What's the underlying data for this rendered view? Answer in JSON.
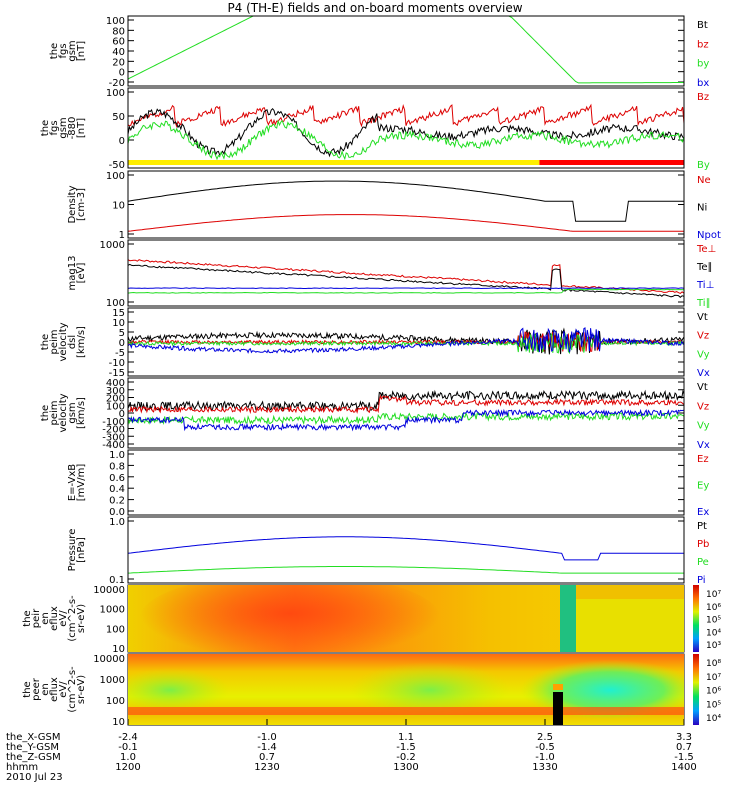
{
  "title": "P4 (TH-E) fields and on-board moments overview",
  "colors": {
    "black": "#000000",
    "red": "#dd0000",
    "green": "#22dd22",
    "blue": "#0000dd",
    "yellow": "#ffee00",
    "barred": "#ff0000"
  },
  "chart_data": [
    {
      "type": "line",
      "panel": "fgs_gsm_1",
      "ylabel": [
        "the",
        "fgs",
        "gsm",
        "[nT]"
      ],
      "yticks": [
        "100",
        "80",
        "60",
        "40",
        "20",
        "0",
        "-20"
      ],
      "ylim": [
        -20,
        100
      ],
      "legend": [
        {
          "label": "Bt",
          "color": "black"
        },
        {
          "label": "bz",
          "color": "red"
        },
        {
          "label": "by",
          "color": "green"
        },
        {
          "label": "bx",
          "color": "blue"
        }
      ]
    },
    {
      "type": "line",
      "panel": "fgs_gsm_2",
      "ylabel": [
        "the",
        "fgs",
        "gsm",
        "-880",
        "[nT]"
      ],
      "yticks": [
        "100",
        "50",
        "0",
        "-50"
      ],
      "ylim": [
        -70,
        100
      ],
      "legend": [
        {
          "label": "Bz",
          "color": "red"
        },
        {
          "label": "By",
          "color": "green"
        }
      ]
    },
    {
      "type": "line",
      "panel": "density",
      "ylabel": [
        "Density",
        "[cm-3]"
      ],
      "yticks": [
        "100",
        "10",
        "1"
      ],
      "ylim": [
        0.4,
        200
      ],
      "scale": "log",
      "legend": [
        {
          "label": "Ne",
          "color": "red"
        },
        {
          "label": "Ni",
          "color": "black"
        },
        {
          "label": "Npot",
          "color": "blue"
        }
      ]
    },
    {
      "type": "line",
      "panel": "temperature",
      "ylabel": [
        "mag13",
        "[eV]"
      ],
      "yticks": [
        "1000",
        "100"
      ],
      "ylim": [
        80,
        5000
      ],
      "scale": "log",
      "legend": [
        {
          "label": "Te⊥",
          "color": "red"
        },
        {
          "label": "Te∥",
          "color": "black"
        },
        {
          "label": "Ti⊥",
          "color": "blue"
        },
        {
          "label": "Ti∥",
          "color": "green"
        }
      ]
    },
    {
      "type": "line",
      "panel": "peim_velocity_dsl",
      "ylabel": [
        "the",
        "peim",
        "velocity",
        "dsl",
        "[km/s]"
      ],
      "yticks": [
        "15",
        "10",
        "5",
        "0",
        "-5",
        "-10",
        "-15"
      ],
      "ylim": [
        -15,
        15
      ],
      "legend": [
        {
          "label": "Vt",
          "color": "black"
        },
        {
          "label": "Vz",
          "color": "red"
        },
        {
          "label": "Vy",
          "color": "green"
        },
        {
          "label": "Vx",
          "color": "blue"
        }
      ]
    },
    {
      "type": "line",
      "panel": "peim_velocity_gsm",
      "ylabel": [
        "the",
        "peim",
        "velocity",
        "gsm",
        "[km/s]"
      ],
      "yticks": [
        "400",
        "300",
        "200",
        "100",
        "0",
        "-100",
        "-200",
        "-300",
        "-400"
      ],
      "ylim": [
        -400,
        400
      ],
      "legend": [
        {
          "label": "Vt",
          "color": "black"
        },
        {
          "label": "Vz",
          "color": "red"
        },
        {
          "label": "Vy",
          "color": "green"
        },
        {
          "label": "Vx",
          "color": "blue"
        }
      ]
    },
    {
      "type": "line",
      "panel": "efield",
      "ylabel": [
        "E=-VxB",
        "[mV/m]"
      ],
      "yticks": [
        "1.0",
        "0.8",
        "0.6",
        "0.4",
        "0.2",
        "0.0"
      ],
      "ylim": [
        0,
        1
      ],
      "legend": [
        {
          "label": "Ez",
          "color": "red"
        },
        {
          "label": "Ey",
          "color": "green"
        },
        {
          "label": "Ex",
          "color": "blue"
        }
      ]
    },
    {
      "type": "line",
      "panel": "pressure",
      "ylabel": [
        "Pressure",
        "[nPa]"
      ],
      "yticks": [
        "1.0",
        "0.1"
      ],
      "ylim": [
        0.02,
        5
      ],
      "scale": "log",
      "legend": [
        {
          "label": "Pt",
          "color": "black"
        },
        {
          "label": "Pb",
          "color": "red"
        },
        {
          "label": "Pe",
          "color": "green"
        },
        {
          "label": "Pi",
          "color": "blue"
        }
      ]
    },
    {
      "type": "heatmap",
      "panel": "peir_en_eflux",
      "ylabel": [
        "the",
        "peir",
        "en",
        "eflux",
        "eV/",
        "(cm^2-s-",
        "sr-eV)"
      ],
      "yticks": [
        "10000",
        "1000",
        "100",
        "10"
      ],
      "colorbar_ticks": [
        "10⁷",
        "10⁶",
        "10⁵",
        "10⁴",
        "10³"
      ]
    },
    {
      "type": "heatmap",
      "panel": "peer_en_eflux",
      "ylabel": [
        "the",
        "peer",
        "en",
        "eflux",
        "eV/",
        "(cm^2-s-",
        "sr-eV)"
      ],
      "yticks": [
        "10000",
        "1000",
        "100",
        "10"
      ],
      "colorbar_ticks": [
        "10⁸",
        "10⁷",
        "10⁶",
        "10⁵",
        "10⁴"
      ]
    }
  ],
  "xaxis": {
    "row_labels": [
      "the_X-GSM",
      "the_Y-GSM",
      "the_Z-GSM",
      "hhmm",
      "2010 Jul 23"
    ],
    "ticks": [
      {
        "time": "1200",
        "x": "-2.4",
        "y": "-0.1",
        "z": "1.0"
      },
      {
        "time": "1230",
        "x": "-1.0",
        "y": "-1.4",
        "z": "0.7"
      },
      {
        "time": "1300",
        "x": "1.1",
        "y": "-1.5",
        "z": "-0.2"
      },
      {
        "time": "1330",
        "x": "2.5",
        "y": "-0.5",
        "z": "-1.0"
      },
      {
        "time": "1400",
        "x": "3.3",
        "y": "0.7",
        "z": "-1.5"
      }
    ]
  }
}
